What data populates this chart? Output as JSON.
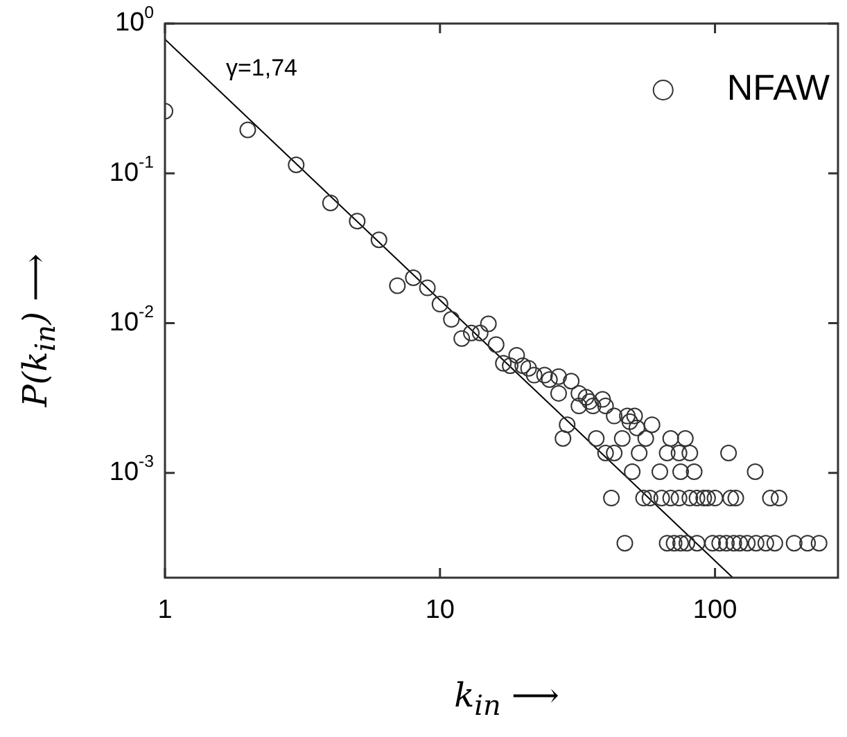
{
  "chart_data": {
    "type": "scatter",
    "xlabel": "k$_{in}$ ⟶",
    "ylabel": "P(k$_{in}$) ⟶",
    "log": "xy",
    "xlim": [
      1,
      280
    ],
    "ylim": [
      0.0002,
      1
    ],
    "xticks": [
      1,
      10,
      100
    ],
    "yticks": [
      {
        "value": 1,
        "label": "10$^{0}$"
      },
      {
        "value": 0.1,
        "label": "10$^{-1}$"
      },
      {
        "value": 0.01,
        "label": "10$^{-2}$"
      },
      {
        "value": 0.001,
        "label": "10$^{-3}$"
      }
    ],
    "grid": false,
    "legend": "top right",
    "marker": "circle",
    "annotations": [
      "γ=1,74"
    ],
    "series": [
      {
        "name": "NFAW",
        "color": "#333333",
        "x": [
          1,
          2,
          3,
          4,
          5,
          6,
          7,
          8,
          9,
          10,
          11,
          12,
          13,
          14,
          15,
          16,
          17,
          18,
          19,
          20,
          21,
          22,
          24,
          25,
          27,
          27,
          30,
          32,
          32,
          34,
          35,
          36,
          39,
          40,
          43,
          48,
          51,
          49,
          52,
          59,
          29,
          28,
          37,
          46,
          56,
          69,
          78,
          40,
          43,
          53,
          67,
          74,
          81,
          112,
          50,
          63,
          75,
          84,
          140,
          42,
          55,
          58,
          64,
          69,
          74,
          81,
          86,
          91,
          94,
          100,
          114,
          119,
          159,
          171,
          47,
          67,
          71,
          75,
          79,
          86,
          98,
          104,
          110,
          117,
          123,
          131,
          141,
          153,
          165,
          194,
          217,
          239
        ],
        "values": [
          0.26,
          0.195,
          0.114,
          0.0635,
          0.048,
          0.036,
          0.0178,
          0.0201,
          0.0172,
          0.0134,
          0.0106,
          0.0079,
          0.0086,
          0.0086,
          0.0099,
          0.0072,
          0.0054,
          0.0052,
          0.0061,
          0.0052,
          0.005,
          0.0045,
          0.0045,
          0.0042,
          0.0044,
          0.0034,
          0.0041,
          0.0034,
          0.0028,
          0.0032,
          0.003,
          0.0028,
          0.0031,
          0.0028,
          0.0024,
          0.0024,
          0.0024,
          0.0022,
          0.002,
          0.0021,
          0.0021,
          0.0017,
          0.0017,
          0.0017,
          0.0017,
          0.0017,
          0.0017,
          0.00136,
          0.00136,
          0.00136,
          0.00136,
          0.00136,
          0.00136,
          0.00136,
          0.00102,
          0.00102,
          0.00102,
          0.00102,
          0.00102,
          0.00068,
          0.00068,
          0.00068,
          0.00068,
          0.00068,
          0.00068,
          0.00068,
          0.00068,
          0.00068,
          0.00068,
          0.00068,
          0.00068,
          0.00068,
          0.00068,
          0.00068,
          0.00034,
          0.00034,
          0.00034,
          0.00034,
          0.00034,
          0.00034,
          0.00034,
          0.00034,
          0.00034,
          0.00034,
          0.00034,
          0.00034,
          0.00034,
          0.00034,
          0.00034,
          0.00034,
          0.00034,
          0.00034
        ]
      },
      {
        "type": "line",
        "color": "#000000",
        "marker": "none",
        "x": [
          1,
          116
        ],
        "values": [
          0.785,
          0.0002
        ]
      }
    ]
  }
}
